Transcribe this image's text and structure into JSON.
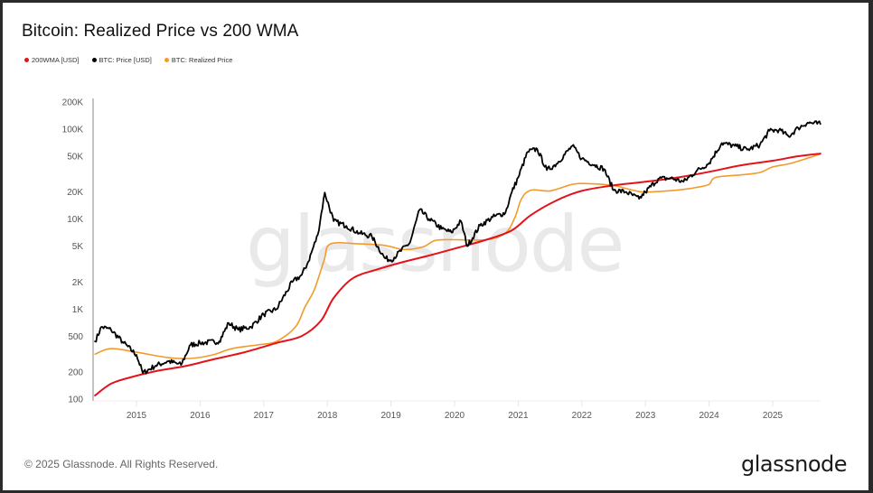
{
  "header": {
    "title": "Bitcoin: Realized Price vs 200 WMA"
  },
  "legend": [
    {
      "label": "200WMA [USD]",
      "color": "#e3131b"
    },
    {
      "label": "BTC: Price [USD]",
      "color": "#000000"
    },
    {
      "label": "BTC: Realized Price",
      "color": "#f39a2b"
    }
  ],
  "footer": {
    "copyright": "© 2025 Glassnode. All Rights Reserved.",
    "brand": "glassnode"
  },
  "watermark": "glassnode",
  "chart_data": {
    "type": "line",
    "title": "Bitcoin: Realized Price vs 200 WMA",
    "xlabel": "",
    "ylabel": "",
    "yscale": "log",
    "ylim": [
      100,
      200000
    ],
    "xlim": [
      2014.35,
      2025.75
    ],
    "grid": false,
    "legend_position": "top-left",
    "y_ticks": [
      {
        "value": 100,
        "label": "100"
      },
      {
        "value": 200,
        "label": "200"
      },
      {
        "value": 500,
        "label": "500"
      },
      {
        "value": 1000,
        "label": "1K"
      },
      {
        "value": 2000,
        "label": "2K"
      },
      {
        "value": 5000,
        "label": "5K"
      },
      {
        "value": 10000,
        "label": "10K"
      },
      {
        "value": 20000,
        "label": "20K"
      },
      {
        "value": 50000,
        "label": "50K"
      },
      {
        "value": 100000,
        "label": "100K"
      },
      {
        "value": 200000,
        "label": "200K"
      }
    ],
    "x_ticks": [
      {
        "value": 2015,
        "label": "2015"
      },
      {
        "value": 2016,
        "label": "2016"
      },
      {
        "value": 2017,
        "label": "2017"
      },
      {
        "value": 2018,
        "label": "2018"
      },
      {
        "value": 2019,
        "label": "2019"
      },
      {
        "value": 2020,
        "label": "2020"
      },
      {
        "value": 2021,
        "label": "2021"
      },
      {
        "value": 2022,
        "label": "2022"
      },
      {
        "value": 2023,
        "label": "2023"
      },
      {
        "value": 2024,
        "label": "2024"
      },
      {
        "value": 2025,
        "label": "2025"
      }
    ],
    "series": [
      {
        "name": "BTC: Realized Price",
        "color": "#f39a2b",
        "x": [
          2014.35,
          2014.6,
          2015.0,
          2015.5,
          2015.85,
          2016.2,
          2016.5,
          2016.9,
          2017.2,
          2017.5,
          2017.65,
          2017.8,
          2017.95,
          2018.05,
          2018.5,
          2018.9,
          2019.2,
          2019.5,
          2019.7,
          2020.0,
          2020.5,
          2020.8,
          2020.95,
          2021.05,
          2021.2,
          2021.5,
          2021.85,
          2022.1,
          2022.5,
          2022.8,
          2023.0,
          2023.5,
          2023.8,
          2024.0,
          2024.1,
          2024.5,
          2024.8,
          2025.0,
          2025.3,
          2025.75
        ],
        "values": [
          316,
          364,
          332,
          289,
          283,
          310,
          364,
          400,
          438,
          635,
          1060,
          1670,
          3500,
          5300,
          5300,
          5100,
          4600,
          4900,
          5800,
          5900,
          5900,
          7000,
          10500,
          16700,
          21000,
          20600,
          24300,
          24800,
          23600,
          21000,
          20000,
          21000,
          22500,
          24300,
          29000,
          31000,
          33000,
          38000,
          42000,
          53000
        ]
      },
      {
        "name": "200WMA [USD]",
        "color": "#e3131b",
        "x": [
          2014.35,
          2014.6,
          2014.9,
          2015.3,
          2015.8,
          2016.2,
          2016.7,
          2017.2,
          2017.6,
          2017.9,
          2018.1,
          2018.4,
          2018.8,
          2019.2,
          2019.6,
          2020.0,
          2020.5,
          2020.9,
          2021.2,
          2021.6,
          2022.0,
          2022.5,
          2023.0,
          2023.5,
          2024.0,
          2024.5,
          2025.0,
          2025.4,
          2025.75
        ],
        "values": [
          110,
          148,
          174,
          204,
          235,
          276,
          332,
          420,
          503,
          745,
          1330,
          2200,
          2780,
          3350,
          3940,
          4700,
          5900,
          7500,
          11100,
          16100,
          20600,
          23700,
          26000,
          29000,
          33500,
          39600,
          44500,
          50000,
          53500
        ]
      },
      {
        "name": "BTC: Price [USD]",
        "color": "#000000",
        "x": [
          2014.35,
          2014.45,
          2014.6,
          2014.8,
          2015.0,
          2015.1,
          2015.3,
          2015.5,
          2015.7,
          2015.85,
          2016.0,
          2016.3,
          2016.45,
          2016.6,
          2016.8,
          2017.0,
          2017.2,
          2017.45,
          2017.6,
          2017.7,
          2017.85,
          2017.96,
          2018.1,
          2018.3,
          2018.5,
          2018.7,
          2018.9,
          2019.0,
          2019.3,
          2019.45,
          2019.6,
          2019.8,
          2019.95,
          2020.1,
          2020.2,
          2020.4,
          2020.6,
          2020.8,
          2020.9,
          2021.0,
          2021.15,
          2021.3,
          2021.45,
          2021.6,
          2021.85,
          2022.0,
          2022.2,
          2022.35,
          2022.5,
          2022.7,
          2022.9,
          2023.0,
          2023.2,
          2023.4,
          2023.6,
          2023.8,
          2024.0,
          2024.2,
          2024.4,
          2024.6,
          2024.8,
          2024.95,
          2025.1,
          2025.25,
          2025.4,
          2025.55,
          2025.75
        ],
        "values": [
          438,
          635,
          590,
          420,
          310,
          195,
          235,
          264,
          240,
          400,
          420,
          438,
          700,
          590,
          635,
          875,
          1000,
          2000,
          2400,
          3360,
          6700,
          19700,
          9500,
          8400,
          7000,
          6400,
          3700,
          3500,
          5500,
          12700,
          10000,
          7800,
          7100,
          9500,
          5000,
          8500,
          10500,
          11800,
          20000,
          29000,
          56000,
          60000,
          35000,
          41000,
          65000,
          47000,
          40000,
          36000,
          21000,
          20000,
          16800,
          20000,
          28000,
          28500,
          26000,
          34000,
          42000,
          70000,
          65000,
          59000,
          67000,
          96000,
          98000,
          83000,
          103000,
          118000,
          114000
        ]
      }
    ]
  }
}
